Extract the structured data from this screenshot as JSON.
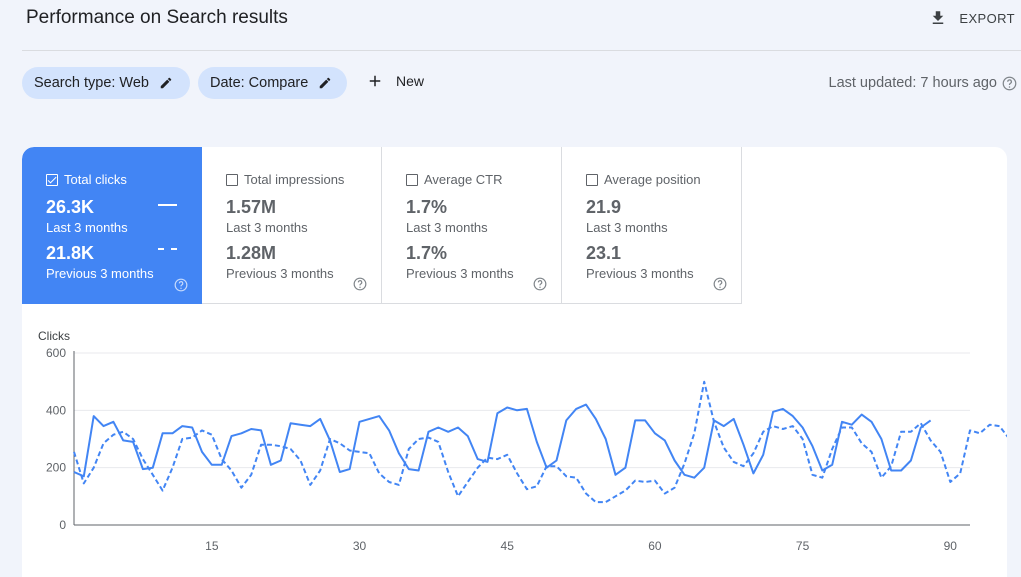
{
  "header": {
    "title": "Performance on Search results",
    "export_label": "EXPORT"
  },
  "filters": {
    "search_type": "Search type: Web",
    "date": "Date: Compare",
    "new_label": "New",
    "last_updated": "Last updated: 7 hours ago"
  },
  "metrics": [
    {
      "label": "Total clicks",
      "value_current": "26.3K",
      "label_current": "Last 3 months",
      "value_previous": "21.8K",
      "label_previous": "Previous 3 months",
      "selected": true
    },
    {
      "label": "Total impressions",
      "value_current": "1.57M",
      "label_current": "Last 3 months",
      "value_previous": "1.28M",
      "label_previous": "Previous 3 months",
      "selected": false
    },
    {
      "label": "Average CTR",
      "value_current": "1.7%",
      "label_current": "Last 3 months",
      "value_previous": "1.7%",
      "label_previous": "Previous 3 months",
      "selected": false
    },
    {
      "label": "Average position",
      "value_current": "21.9",
      "label_current": "Last 3 months",
      "value_previous": "23.1",
      "label_previous": "Previous 3 months",
      "selected": false
    }
  ],
  "colors": {
    "accent": "#4285f4",
    "chip": "#d3e3fd",
    "background": "#f1f4fb",
    "line": "#4285f4"
  },
  "chart_data": {
    "type": "line",
    "ylabel": "Clicks",
    "ylim": [
      0,
      600
    ],
    "yticks": [
      0,
      200,
      400,
      600
    ],
    "xlim": [
      1,
      92
    ],
    "xticks": [
      15,
      30,
      45,
      60,
      75,
      90
    ],
    "grid": true,
    "series": [
      {
        "style": "solid",
        "x_start": 1,
        "values": [
          185,
          170,
          380,
          345,
          360,
          295,
          290,
          195,
          200,
          320,
          320,
          345,
          340,
          255,
          210,
          210,
          310,
          320,
          335,
          330,
          210,
          225,
          355,
          350,
          345,
          370,
          295,
          185,
          195,
          360,
          370,
          380,
          330,
          250,
          195,
          190,
          325,
          340,
          325,
          340,
          310,
          230,
          220,
          390,
          410,
          400,
          405,
          290,
          200,
          225,
          365,
          405,
          420,
          370,
          300,
          175,
          200,
          365,
          365,
          320,
          295,
          225,
          175,
          165,
          200,
          365,
          345,
          370,
          280,
          180,
          245,
          395,
          405,
          380,
          340,
          275,
          190,
          210,
          360,
          350,
          385,
          360,
          300,
          190,
          190,
          225,
          340,
          365
        ]
      },
      {
        "style": "dashed",
        "x_start": 1,
        "values": [
          255,
          145,
          200,
          285,
          315,
          325,
          300,
          230,
          175,
          120,
          200,
          300,
          305,
          330,
          315,
          230,
          190,
          130,
          175,
          280,
          280,
          275,
          265,
          225,
          140,
          190,
          300,
          285,
          260,
          255,
          250,
          180,
          150,
          140,
          265,
          300,
          305,
          290,
          185,
          100,
          150,
          200,
          235,
          230,
          245,
          180,
          125,
          135,
          205,
          205,
          170,
          165,
          110,
          80,
          80,
          100,
          120,
          155,
          150,
          155,
          110,
          130,
          215,
          320,
          500,
          360,
          270,
          220,
          205,
          250,
          325,
          345,
          335,
          345,
          300,
          175,
          165,
          265,
          340,
          340,
          285,
          255,
          165,
          205,
          325,
          325,
          355,
          295,
          255,
          150,
          180,
          330,
          320,
          350,
          345,
          300
        ]
      }
    ]
  }
}
